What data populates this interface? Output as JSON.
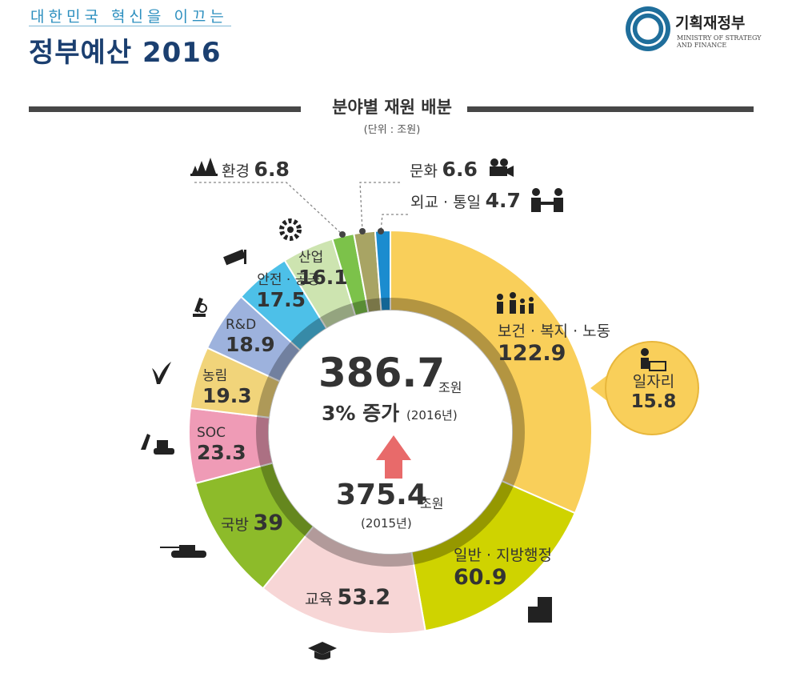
{
  "header": {
    "subtitle": "대한민국 혁신을 이끄는",
    "title": "정부예산 2016"
  },
  "ministry": {
    "name_kr": "기획재정부",
    "name_en_1": "MINISTRY OF STRATEGY",
    "name_en_2": "AND FINANCE"
  },
  "section": {
    "title": "분야별 재원 배분",
    "unit": "(단위 : 조원)"
  },
  "center": {
    "total": "386.7",
    "total_unit": "조원",
    "growth": "3% 증가",
    "growth_year": "(2016년)",
    "prev_total": "375.4",
    "prev_unit": "조원",
    "prev_year": "(2015년)"
  },
  "labels": {
    "welfare_name": "보건 · 복지 · 노동",
    "welfare_value": "122.9",
    "jobs_name": "일자리",
    "jobs_value": "15.8",
    "general_name": "일반 · 지방행정",
    "general_value": "60.9",
    "education_name": "교육",
    "education_value": "53.2",
    "defense_name": "국방",
    "defense_value": "39",
    "soc_name": "SOC",
    "soc_value": "23.3",
    "agri_name": "농림",
    "agri_value": "19.3",
    "rnd_name": "R&D",
    "rnd_value": "18.9",
    "safety_name": "안전 · 공공",
    "safety_value": "17.5",
    "industry_name": "산업",
    "industry_value": "16.1",
    "env_name": "환경",
    "env_value": "6.8",
    "culture_name": "문화",
    "culture_value": "6.6",
    "diplomacy_name": "외교 · 통일",
    "diplomacy_value": "4.7"
  },
  "chart_data": {
    "type": "pie",
    "title": "분야별 재원 배분",
    "unit": "(단위 : 조원)",
    "total": 386.7,
    "series": [
      {
        "name": "보건 · 복지 · 노동",
        "value": 122.9,
        "color": "#f9cf5a"
      },
      {
        "name": "일반 · 지방행정",
        "value": 60.9,
        "color": "#cfd300"
      },
      {
        "name": "교육",
        "value": 53.2,
        "color": "#f7d6d6"
      },
      {
        "name": "국방",
        "value": 39,
        "color": "#8dbb2a"
      },
      {
        "name": "SOC",
        "value": 23.3,
        "color": "#ef9bb6"
      },
      {
        "name": "농림",
        "value": 19.3,
        "color": "#f1d47a"
      },
      {
        "name": "R&D",
        "value": 18.9,
        "color": "#9db2dd"
      },
      {
        "name": "안전 · 공공",
        "value": 17.5,
        "color": "#4dc0e8"
      },
      {
        "name": "산업",
        "value": 16.1,
        "color": "#cde4b0"
      },
      {
        "name": "환경",
        "value": 6.8,
        "color": "#7cc24a"
      },
      {
        "name": "문화",
        "value": 6.6,
        "color": "#a8a464"
      },
      {
        "name": "외교 · 통일",
        "value": 4.7,
        "color": "#1b8ccf"
      }
    ],
    "sub_item": {
      "name": "일자리",
      "value": 15.8,
      "parent": "보건 · 복지 · 노동"
    },
    "comparison": [
      {
        "year": "2015년",
        "value": 375.4
      },
      {
        "year": "2016년",
        "value": 386.7
      }
    ]
  }
}
